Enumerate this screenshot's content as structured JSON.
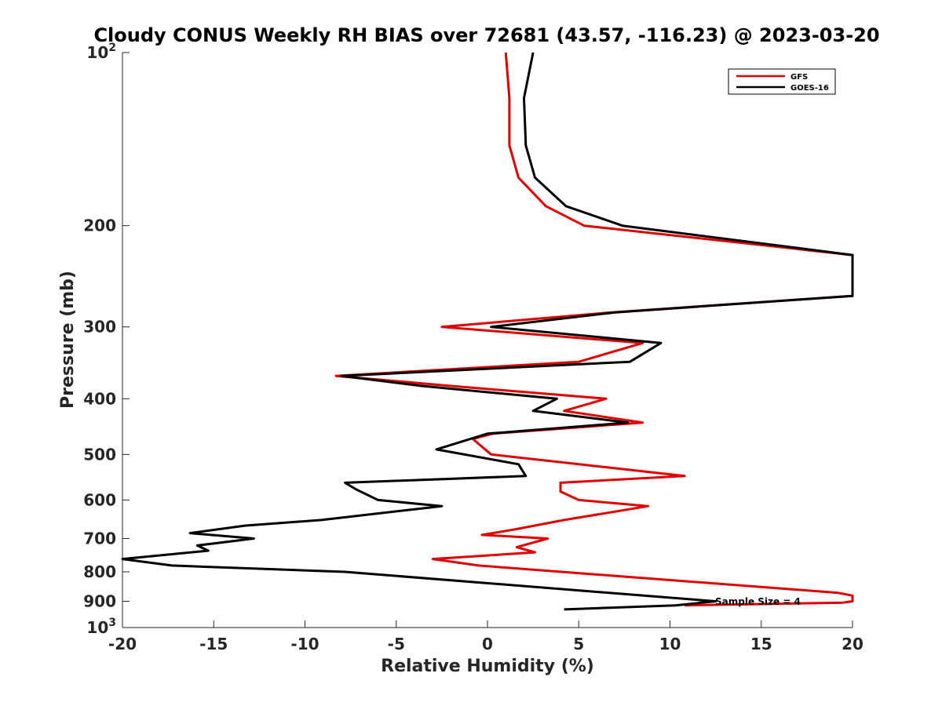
{
  "chart_data": {
    "type": "line",
    "title": "Cloudy CONUS Weekly RH BIAS over 72681 (43.57, -116.23) @ 2023-03-20",
    "xlabel": "Relative Humidity (%)",
    "ylabel": "Pressure (mb)",
    "xlim": [
      -20,
      20
    ],
    "ylim": [
      100,
      1000
    ],
    "y_scale": "log",
    "y_reversed": true,
    "x_ticks": [
      "-20",
      "-15",
      "-10",
      "-5",
      "0",
      "5",
      "10",
      "15",
      "20"
    ],
    "y_ticks": [
      {
        "value": 100,
        "label": "10",
        "sup": "2"
      },
      {
        "value": 200,
        "label": "200"
      },
      {
        "value": 300,
        "label": "300"
      },
      {
        "value": 400,
        "label": "400"
      },
      {
        "value": 500,
        "label": "500"
      },
      {
        "value": 600,
        "label": "600"
      },
      {
        "value": 700,
        "label": "700"
      },
      {
        "value": 800,
        "label": "800"
      },
      {
        "value": 900,
        "label": "900"
      },
      {
        "value": 1000,
        "label": "10",
        "sup": "3"
      }
    ],
    "grid": false,
    "legend_position": "top-right",
    "annotation": "Sample Size = 4",
    "series": [
      {
        "name": "GFS",
        "color": "#e00000",
        "points": [
          [
            1.0,
            100
          ],
          [
            1.2,
            120
          ],
          [
            1.2,
            145
          ],
          [
            1.7,
            165
          ],
          [
            3.2,
            185
          ],
          [
            5.3,
            200
          ],
          [
            20,
            225
          ],
          [
            20,
            265
          ],
          [
            6.8,
            283
          ],
          [
            -2.5,
            300
          ],
          [
            8.5,
            320
          ],
          [
            5.0,
            345
          ],
          [
            -8.3,
            365
          ],
          [
            -2.0,
            380
          ],
          [
            6.5,
            400
          ],
          [
            4.2,
            420
          ],
          [
            8.5,
            440
          ],
          [
            0.3,
            460
          ],
          [
            -0.8,
            470
          ],
          [
            0.2,
            500
          ],
          [
            10.8,
            545
          ],
          [
            4.0,
            560
          ],
          [
            4.0,
            580
          ],
          [
            5.0,
            600
          ],
          [
            8.8,
            615
          ],
          [
            4.2,
            650
          ],
          [
            1.5,
            675
          ],
          [
            -0.3,
            690
          ],
          [
            3.3,
            700
          ],
          [
            1.6,
            725
          ],
          [
            2.6,
            740
          ],
          [
            -3.0,
            760
          ],
          [
            -0.5,
            780
          ],
          [
            19.2,
            870
          ],
          [
            20,
            880
          ],
          [
            20,
            900
          ],
          [
            19.5,
            905
          ],
          [
            10.8,
            915
          ]
        ]
      },
      {
        "name": "GOES-16",
        "color": "#000000",
        "points": [
          [
            2.5,
            100
          ],
          [
            2.0,
            120
          ],
          [
            2.1,
            145
          ],
          [
            2.6,
            165
          ],
          [
            4.3,
            185
          ],
          [
            7.4,
            200
          ],
          [
            20,
            225
          ],
          [
            20,
            265
          ],
          [
            7.0,
            283
          ],
          [
            0.2,
            300
          ],
          [
            9.5,
            320
          ],
          [
            7.8,
            345
          ],
          [
            -8.0,
            365
          ],
          [
            -3.6,
            380
          ],
          [
            3.8,
            400
          ],
          [
            2.5,
            420
          ],
          [
            7.7,
            440
          ],
          [
            0.0,
            460
          ],
          [
            -2.8,
            490
          ],
          [
            1.7,
            520
          ],
          [
            2.1,
            545
          ],
          [
            -7.8,
            560
          ],
          [
            -7.2,
            575
          ],
          [
            -6.0,
            600
          ],
          [
            -2.5,
            615
          ],
          [
            -9.1,
            650
          ],
          [
            -13.3,
            665
          ],
          [
            -16.3,
            685
          ],
          [
            -12.8,
            700
          ],
          [
            -15.9,
            720
          ],
          [
            -15.3,
            735
          ],
          [
            -20,
            760
          ],
          [
            -17.3,
            780
          ],
          [
            -7.8,
            800
          ],
          [
            12.5,
            900
          ],
          [
            10.3,
            915
          ],
          [
            4.2,
            930
          ]
        ]
      }
    ]
  }
}
